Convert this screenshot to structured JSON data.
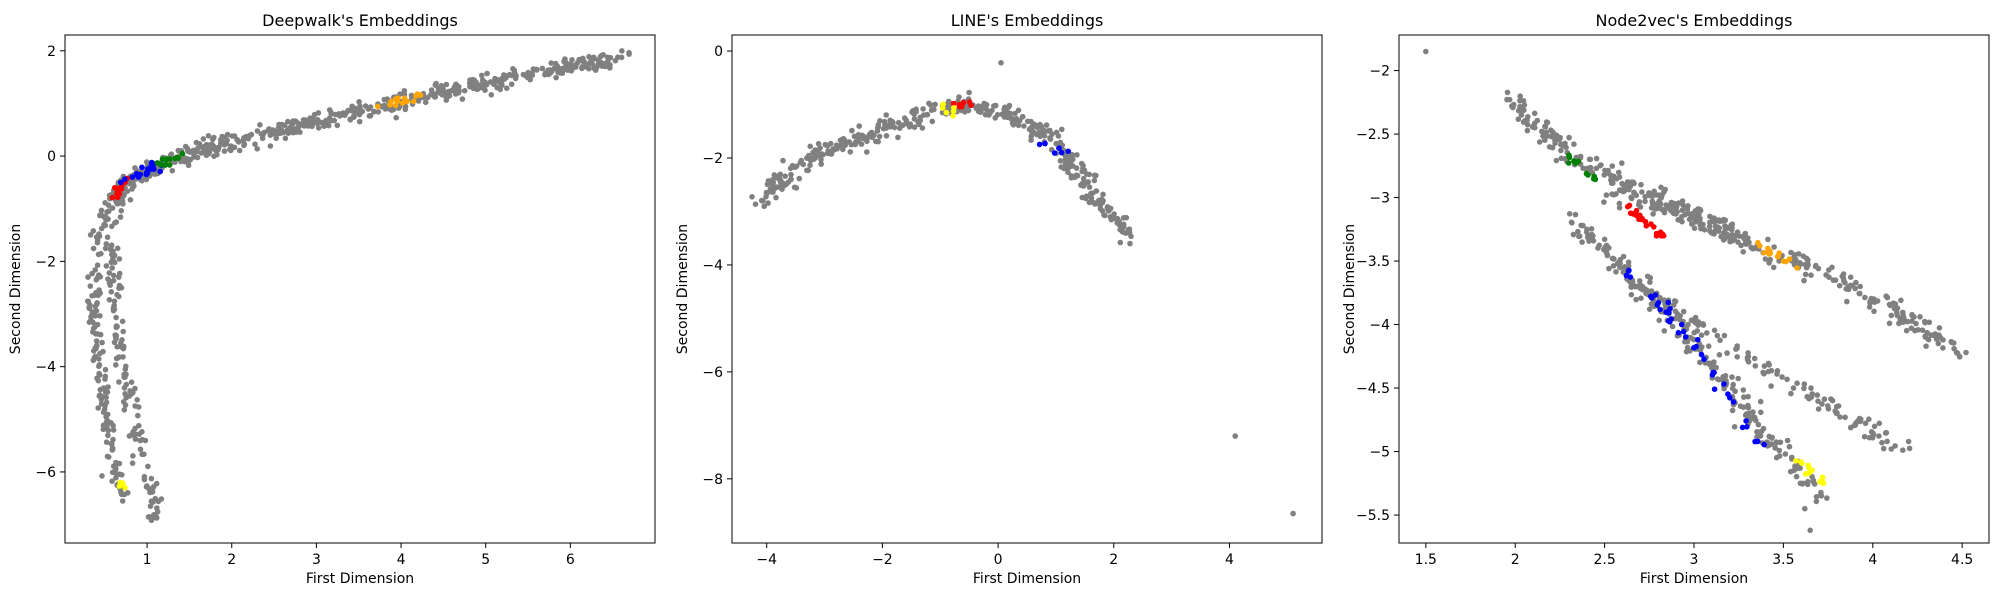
{
  "chart_data": [
    {
      "type": "scatter",
      "title": "Deepwalk's Embeddings",
      "xlabel": "First Dimension",
      "ylabel": "Second Dimension",
      "xlim": [
        0.03,
        7.0
      ],
      "ylim": [
        -7.35,
        2.3
      ],
      "xticks": [
        1,
        2,
        3,
        4,
        5,
        6
      ],
      "yticks": [
        -6,
        -4,
        -2,
        0,
        2
      ],
      "grid": false,
      "base_color": "#808080",
      "base_curves": [
        {
          "xy": [
            [
              0.7,
              -0.6
            ],
            [
              0.6,
              -0.75
            ],
            [
              0.5,
              -1.0
            ],
            [
              0.42,
              -1.4
            ],
            [
              0.38,
              -2.0
            ],
            [
              0.38,
              -3.0
            ],
            [
              0.42,
              -4.0
            ],
            [
              0.5,
              -4.8
            ],
            [
              0.58,
              -5.5
            ],
            [
              0.65,
              -6.1
            ],
            [
              0.72,
              -6.5
            ]
          ],
          "n": 150,
          "spread": 0.04
        },
        {
          "xy": [
            [
              0.7,
              -0.6
            ],
            [
              0.62,
              -0.9
            ],
            [
              0.58,
              -1.3
            ],
            [
              0.58,
              -2.0
            ],
            [
              0.62,
              -3.0
            ],
            [
              0.72,
              -4.0
            ],
            [
              0.85,
              -5.0
            ],
            [
              0.97,
              -6.0
            ],
            [
              1.08,
              -6.7
            ],
            [
              1.12,
              -6.95
            ]
          ],
          "n": 150,
          "spread": 0.04
        },
        {
          "xy": [
            [
              0.62,
              -0.85
            ],
            [
              0.78,
              -0.42
            ],
            [
              1.0,
              -0.2
            ],
            [
              1.4,
              0.0
            ],
            [
              2.0,
              0.3
            ],
            [
              3.0,
              0.65
            ],
            [
              4.0,
              1.05
            ],
            [
              5.0,
              1.4
            ],
            [
              6.0,
              1.7
            ],
            [
              6.6,
              1.88
            ]
          ],
          "n": 320,
          "spread": 0.05
        },
        {
          "xy": [
            [
              0.66,
              -0.7
            ],
            [
              0.8,
              -0.5
            ],
            [
              1.1,
              -0.25
            ],
            [
              1.6,
              0.05
            ],
            [
              2.6,
              0.45
            ],
            [
              3.6,
              0.88
            ],
            [
              4.6,
              1.24
            ],
            [
              5.6,
              1.57
            ],
            [
              6.5,
              1.85
            ]
          ],
          "n": 220,
          "spread": 0.05
        }
      ],
      "clusters": [
        {
          "color": "#ff0000",
          "xy": [
            [
              0.62,
              -0.75
            ],
            [
              0.7,
              -0.55
            ],
            [
              0.78,
              -0.45
            ]
          ],
          "n": 12,
          "spread": 0.03
        },
        {
          "color": "#0000ff",
          "xy": [
            [
              0.75,
              -0.5
            ],
            [
              0.95,
              -0.3
            ],
            [
              1.15,
              -0.15
            ]
          ],
          "n": 22,
          "spread": 0.03
        },
        {
          "color": "#008000",
          "xy": [
            [
              1.15,
              -0.1
            ],
            [
              1.3,
              -0.02
            ],
            [
              1.45,
              0.05
            ]
          ],
          "n": 12,
          "spread": 0.03
        },
        {
          "color": "#ffa500",
          "xy": [
            [
              3.7,
              0.95
            ],
            [
              4.0,
              1.05
            ],
            [
              4.25,
              1.12
            ]
          ],
          "n": 14,
          "spread": 0.03
        },
        {
          "color": "#ffff00",
          "xy": [
            [
              0.7,
              -6.15
            ],
            [
              0.72,
              -6.3
            ],
            [
              0.75,
              -6.45
            ]
          ],
          "n": 5,
          "spread": 0.02
        }
      ],
      "outliers": []
    },
    {
      "type": "scatter",
      "title": "LINE's Embeddings",
      "xlabel": "First Dimension",
      "ylabel": "Second Dimension",
      "xlim": [
        -4.6,
        5.6
      ],
      "ylim": [
        -9.2,
        0.3
      ],
      "xticks": [
        -4,
        -2,
        0,
        2,
        4
      ],
      "yticks": [
        -8,
        -6,
        -4,
        -2,
        0
      ],
      "grid": false,
      "base_color": "#808080",
      "base_curves": [
        {
          "xy": [
            [
              -4.2,
              -2.85
            ],
            [
              -3.5,
              -2.2
            ],
            [
              -2.8,
              -1.8
            ],
            [
              -2.0,
              -1.45
            ],
            [
              -1.2,
              -1.15
            ],
            [
              -0.5,
              -1.02
            ],
            [
              0.0,
              -1.1
            ],
            [
              0.5,
              -1.35
            ],
            [
              1.0,
              -1.75
            ],
            [
              1.4,
              -2.25
            ],
            [
              1.7,
              -2.8
            ],
            [
              2.3,
              -3.4
            ]
          ],
          "n": 420,
          "spread": 0.06
        }
      ],
      "clusters": [
        {
          "color": "#ff0000",
          "xy": [
            [
              -0.8,
              -1.0
            ],
            [
              -0.6,
              -0.98
            ],
            [
              -0.4,
              -1.0
            ]
          ],
          "n": 8,
          "spread": 0.03
        },
        {
          "color": "#ffff00",
          "xy": [
            [
              -1.0,
              -1.1
            ],
            [
              -0.85,
              -1.12
            ],
            [
              -0.7,
              -1.1
            ]
          ],
          "n": 6,
          "spread": 0.03
        },
        {
          "color": "#0000ff",
          "xy": [
            [
              0.8,
              -1.7
            ],
            [
              1.0,
              -1.85
            ],
            [
              1.2,
              -2.05
            ]
          ],
          "n": 6,
          "spread": 0.03
        }
      ],
      "outliers": [
        [
          0.05,
          -0.22
        ],
        [
          4.1,
          -7.2
        ],
        [
          5.1,
          -8.65
        ]
      ]
    },
    {
      "type": "scatter",
      "title": "Node2vec's Embeddings",
      "xlabel": "First Dimension",
      "ylabel": "Second Dimension",
      "xlim": [
        1.35,
        4.65
      ],
      "ylim": [
        -5.72,
        -1.72
      ],
      "xticks": [
        1.5,
        2.0,
        2.5,
        3.0,
        3.5,
        4.0,
        4.5
      ],
      "yticks": [
        -5.5,
        -5.0,
        -4.5,
        -4.0,
        -3.5,
        -3.0,
        -2.5,
        -2.0
      ],
      "grid": false,
      "base_color": "#808080",
      "base_curves": [
        {
          "xy": [
            [
              1.95,
              -2.2
            ],
            [
              2.3,
              -2.65
            ],
            [
              2.8,
              -3.05
            ],
            [
              3.3,
              -3.35
            ],
            [
              3.8,
              -3.65
            ],
            [
              4.2,
              -3.95
            ],
            [
              4.5,
              -4.25
            ]
          ],
          "n": 330,
          "spread": 0.06
        },
        {
          "xy": [
            [
              2.3,
              -3.15
            ],
            [
              2.6,
              -3.55
            ],
            [
              2.9,
              -4.0
            ],
            [
              3.15,
              -4.4
            ],
            [
              3.35,
              -4.8
            ],
            [
              3.55,
              -5.1
            ],
            [
              3.7,
              -5.35
            ]
          ],
          "n": 230,
          "spread": 0.06
        },
        {
          "xy": [
            [
              2.6,
              -3.6
            ],
            [
              2.9,
              -3.9
            ],
            [
              3.3,
              -4.25
            ],
            [
              3.7,
              -4.6
            ],
            [
              4.0,
              -4.85
            ],
            [
              4.2,
              -5.0
            ]
          ],
          "n": 120,
          "spread": 0.05
        },
        {
          "xy": [
            [
              2.5,
              -2.95
            ],
            [
              2.8,
              -3.0
            ],
            [
              3.0,
              -3.15
            ],
            [
              3.2,
              -3.25
            ]
          ],
          "n": 90,
          "spread": 0.08
        }
      ],
      "clusters": [
        {
          "color": "#008000",
          "xy": [
            [
              2.25,
              -2.65
            ],
            [
              2.35,
              -2.75
            ],
            [
              2.45,
              -2.85
            ]
          ],
          "n": 12,
          "spread": 0.025
        },
        {
          "color": "#ff0000",
          "xy": [
            [
              2.55,
              -3.0
            ],
            [
              2.7,
              -3.15
            ],
            [
              2.82,
              -3.3
            ]
          ],
          "n": 22,
          "spread": 0.025
        },
        {
          "color": "#ffa500",
          "xy": [
            [
              3.35,
              -3.35
            ],
            [
              3.45,
              -3.45
            ],
            [
              3.55,
              -3.52
            ]
          ],
          "n": 14,
          "spread": 0.03
        },
        {
          "color": "#0000ff",
          "xy": [
            [
              2.6,
              -3.55
            ],
            [
              2.85,
              -3.9
            ],
            [
              3.05,
              -4.25
            ],
            [
              3.25,
              -4.7
            ],
            [
              3.35,
              -4.95
            ]
          ],
          "n": 40,
          "spread": 0.035
        },
        {
          "color": "#ffff00",
          "xy": [
            [
              3.55,
              -5.0
            ],
            [
              3.65,
              -5.15
            ],
            [
              3.75,
              -5.3
            ]
          ],
          "n": 14,
          "spread": 0.025
        }
      ],
      "outliers": [
        [
          1.5,
          -1.85
        ],
        [
          3.65,
          -5.62
        ],
        [
          3.62,
          -5.45
        ]
      ]
    }
  ]
}
